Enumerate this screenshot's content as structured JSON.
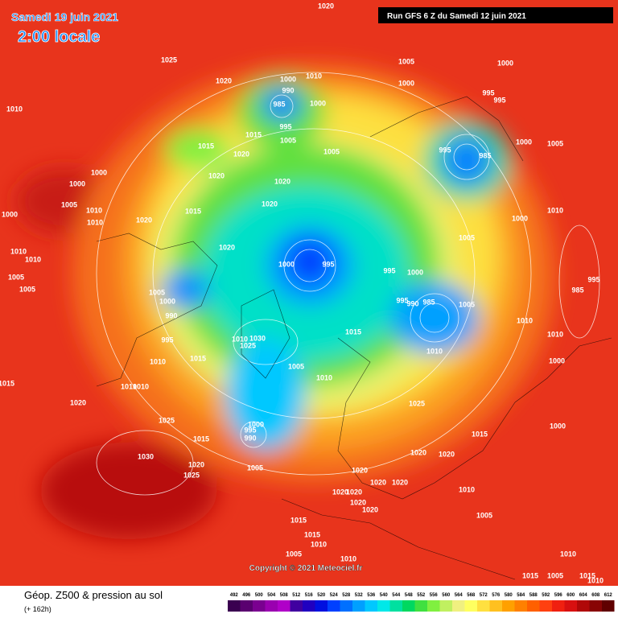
{
  "header": {
    "date": "Samedi 19 juin 2021",
    "time": "2:00 locale",
    "run": "Run GFS 6 Z du Samedi 12 juin 2021"
  },
  "footer": {
    "copyright": "Copyright © 2021 Meteociel.fr",
    "field": "Géop. Z500 & pression au sol",
    "lead": "(+ 162h)"
  },
  "isobar_labels": [
    "1020",
    "1025",
    "1020",
    "1000",
    "1010",
    "990",
    "985",
    "1000",
    "1005",
    "1000",
    "1000",
    "995",
    "995",
    "1010",
    "1015",
    "995",
    "1005",
    "1015",
    "1020",
    "1005",
    "995",
    "985",
    "1000",
    "1005",
    "1000",
    "1000",
    "1020",
    "1020",
    "1005",
    "1010",
    "1015",
    "1020",
    "1000",
    "1020",
    "1010",
    "1000",
    "1010",
    "1005",
    "1020",
    "1010",
    "1010",
    "1000",
    "995",
    "995",
    "1000",
    "1005",
    "1005",
    "1005",
    "1000",
    "990",
    "995",
    "990",
    "985",
    "1005",
    "995",
    "985",
    "1010",
    "995",
    "1010",
    "1030",
    "1025",
    "1015",
    "1010",
    "1015",
    "1010",
    "1000",
    "1010",
    "1005",
    "1010",
    "1015",
    "1010",
    "1010",
    "1020",
    "1025",
    "1025",
    "1000",
    "995",
    "990",
    "1000",
    "1015",
    "1015",
    "1030",
    "1020",
    "1020",
    "1020",
    "1005",
    "1020",
    "1025",
    "1020",
    "1020",
    "1020",
    "1020",
    "1010",
    "1020",
    "1020",
    "1005",
    "1015",
    "1015",
    "1010",
    "1005",
    "1010",
    "1010",
    "1015",
    "1005",
    "1015",
    "1010"
  ],
  "scale": {
    "values": [
      492,
      496,
      500,
      504,
      508,
      512,
      516,
      520,
      524,
      528,
      532,
      536,
      540,
      544,
      548,
      552,
      556,
      560,
      564,
      568,
      572,
      576,
      580,
      584,
      588,
      592,
      596,
      600,
      604,
      608,
      612
    ],
    "colors": [
      "#3a0050",
      "#5a0070",
      "#7a0090",
      "#9a00b0",
      "#b000c8",
      "#4000a0",
      "#2000c0",
      "#0010e0",
      "#0040ff",
      "#0070ff",
      "#00a0ff",
      "#00c8ff",
      "#00e8e8",
      "#00e0a0",
      "#00d860",
      "#40e040",
      "#80f040",
      "#c0f060",
      "#f0f080",
      "#ffff60",
      "#ffe040",
      "#ffc020",
      "#ffa000",
      "#ff8000",
      "#ff6000",
      "#ff4010",
      "#f02010",
      "#d81010",
      "#b00808",
      "#880404",
      "#600000"
    ]
  }
}
